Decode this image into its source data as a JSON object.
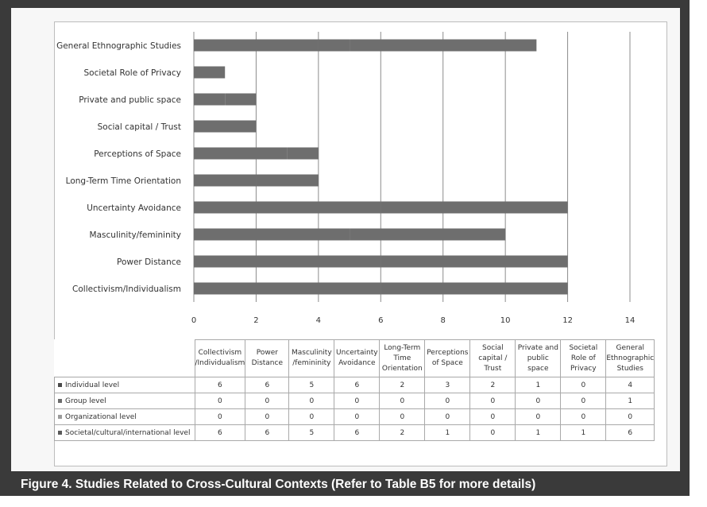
{
  "caption": "Figure 4.  Studies Related to Cross-Cultural Contexts (Refer to Table B5 for more details)",
  "colors": {
    "bar": "#6e6e6e",
    "frame": "#3a3a3a",
    "legend_individual": "#4a4a4a",
    "legend_group": "#6b6b6b",
    "legend_organizational": "#9b9b9b",
    "legend_societal": "#5a5a5a"
  },
  "chart_data": {
    "type": "bar",
    "orientation": "horizontal",
    "stacked": true,
    "categories": [
      "Collectivism/Individualism",
      "Power Distance",
      "Masculinity/femininity",
      "Uncertainty Avoidance",
      "Long-Term Time Orientation",
      "Perceptions of Space",
      "Social capital / Trust",
      "Private and public space",
      "Societal Role of Privacy",
      "General Ethnographic Studies"
    ],
    "table_headers": [
      "Collectivism /Individualism",
      "Power Distance",
      "Masculinity /femininity",
      "Uncertainty Avoidance",
      "Long-Term Time Orientation",
      "Perceptions of Space",
      "Social capital / Trust",
      "Private and public space",
      "Societal Role of Privacy",
      "General Ethnographic Studies"
    ],
    "series": [
      {
        "name": "Individual level",
        "values": [
          6,
          6,
          5,
          6,
          2,
          3,
          2,
          1,
          0,
          4
        ]
      },
      {
        "name": "Group level",
        "values": [
          0,
          0,
          0,
          0,
          0,
          0,
          0,
          0,
          0,
          1
        ]
      },
      {
        "name": "Organizational level",
        "values": [
          0,
          0,
          0,
          0,
          0,
          0,
          0,
          0,
          0,
          0
        ]
      },
      {
        "name": "Societal/cultural/international level",
        "values": [
          6,
          6,
          5,
          6,
          2,
          1,
          0,
          1,
          1,
          6
        ]
      }
    ],
    "xlim": [
      0,
      14
    ],
    "x_ticks": [
      0,
      2,
      4,
      6,
      8,
      10,
      12,
      14
    ],
    "grid": true
  }
}
